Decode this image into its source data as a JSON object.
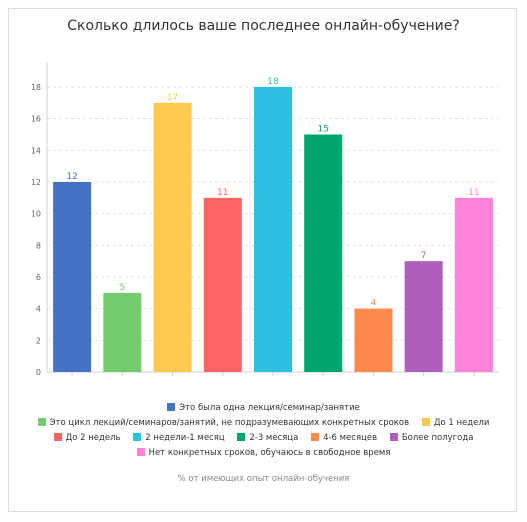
{
  "chart_data": {
    "type": "bar",
    "title": "Сколько длилось ваше последнее онлайн-обучение?",
    "ylim": [
      0,
      18
    ],
    "yticks": [
      0,
      2,
      4,
      6,
      8,
      10,
      12,
      14,
      16,
      18
    ],
    "grid": true,
    "legend_position": "bottom",
    "note": "% от имеющих опыт онлайн-обучения",
    "series": [
      {
        "name": "Это была одна лекция/семинар/занятие",
        "value": 12,
        "color": "#4472c4"
      },
      {
        "name": "Это цикл лекций/семинаров/занятий, не подразумевающих конкретных сроков",
        "value": 5,
        "color": "#72cc6d"
      },
      {
        "name": "До 1 недели",
        "value": 17,
        "color": "#ffc94d"
      },
      {
        "name": "До 2 недель",
        "value": 11,
        "color": "#fe6464"
      },
      {
        "name": "2 недели-1 месяц",
        "value": 18,
        "color": "#2ec0e3"
      },
      {
        "name": "2-3 месяца",
        "value": 15,
        "color": "#00a46e"
      },
      {
        "name": "4-6 месяцев",
        "value": 4,
        "color": "#ff8a4c"
      },
      {
        "name": "Более полугода",
        "value": 7,
        "color": "#ae5fbb"
      },
      {
        "name": "Нет конкретных сроков, обучаюсь в свободное время",
        "value": 11,
        "color": "#ff82d8"
      }
    ]
  }
}
